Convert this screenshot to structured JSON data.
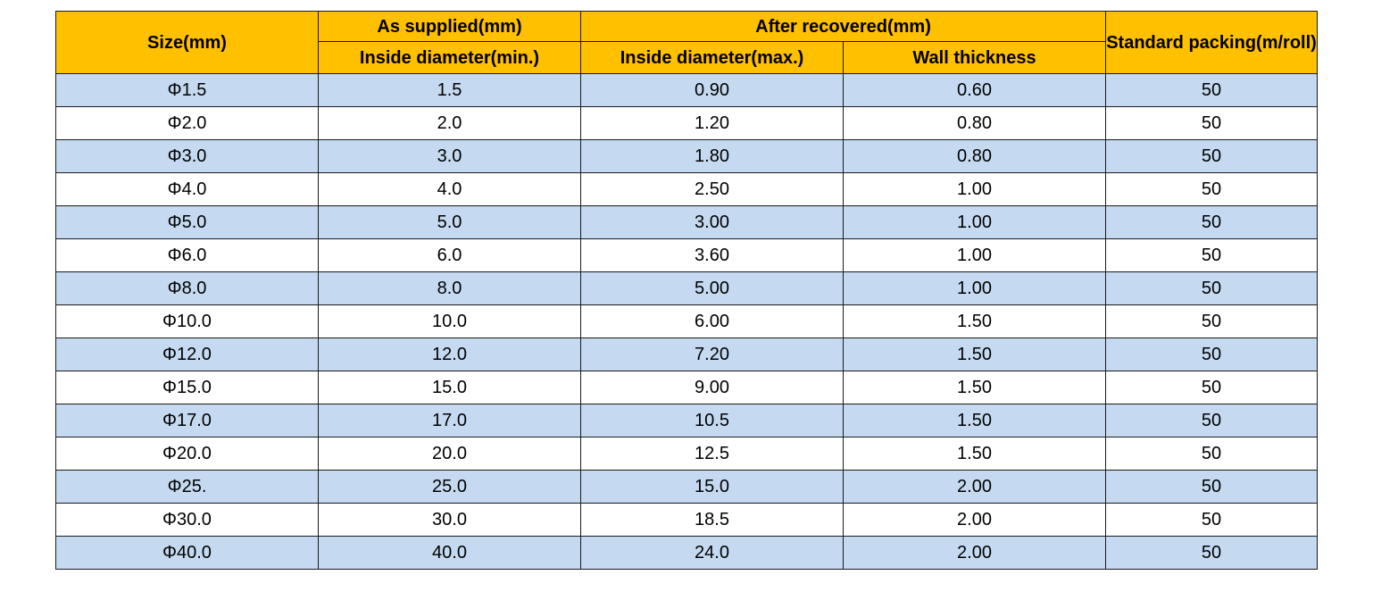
{
  "header": {
    "size": "Size(mm)",
    "as_supplied": "As supplied(mm)",
    "after_recovered": "After recovered(mm)",
    "standard_packing": "Standard packing(m/roll)",
    "inside_diameter_min": "Inside diameter(min.)",
    "inside_diameter_max": "Inside diameter(max.)",
    "wall_thickness": "Wall thickness"
  },
  "colors": {
    "header_bg": "#ffc000",
    "row_alt_bg": "#c5daf1",
    "row_bg": "#ffffff"
  },
  "rows": [
    {
      "size": "Φ1.5",
      "id_min": "1.5",
      "id_max": "0.90",
      "wall": "0.60",
      "packing": "50"
    },
    {
      "size": "Φ2.0",
      "id_min": "2.0",
      "id_max": "1.20",
      "wall": "0.80",
      "packing": "50"
    },
    {
      "size": "Φ3.0",
      "id_min": "3.0",
      "id_max": "1.80",
      "wall": "0.80",
      "packing": "50"
    },
    {
      "size": "Φ4.0",
      "id_min": "4.0",
      "id_max": "2.50",
      "wall": "1.00",
      "packing": "50"
    },
    {
      "size": "Φ5.0",
      "id_min": "5.0",
      "id_max": "3.00",
      "wall": "1.00",
      "packing": "50"
    },
    {
      "size": "Φ6.0",
      "id_min": "6.0",
      "id_max": "3.60",
      "wall": "1.00",
      "packing": "50"
    },
    {
      "size": "Φ8.0",
      "id_min": "8.0",
      "id_max": "5.00",
      "wall": "1.00",
      "packing": "50"
    },
    {
      "size": "Φ10.0",
      "id_min": "10.0",
      "id_max": "6.00",
      "wall": "1.50",
      "packing": "50"
    },
    {
      "size": "Φ12.0",
      "id_min": "12.0",
      "id_max": "7.20",
      "wall": "1.50",
      "packing": "50"
    },
    {
      "size": "Φ15.0",
      "id_min": "15.0",
      "id_max": "9.00",
      "wall": "1.50",
      "packing": "50"
    },
    {
      "size": "Φ17.0",
      "id_min": "17.0",
      "id_max": "10.5",
      "wall": "1.50",
      "packing": "50"
    },
    {
      "size": "Φ20.0",
      "id_min": "20.0",
      "id_max": "12.5",
      "wall": "1.50",
      "packing": "50"
    },
    {
      "size": "Φ25.",
      "id_min": "25.0",
      "id_max": "15.0",
      "wall": "2.00",
      "packing": "50"
    },
    {
      "size": "Φ30.0",
      "id_min": "30.0",
      "id_max": "18.5",
      "wall": "2.00",
      "packing": "50"
    },
    {
      "size": "Φ40.0",
      "id_min": "40.0",
      "id_max": "24.0",
      "wall": "2.00",
      "packing": "50"
    }
  ]
}
